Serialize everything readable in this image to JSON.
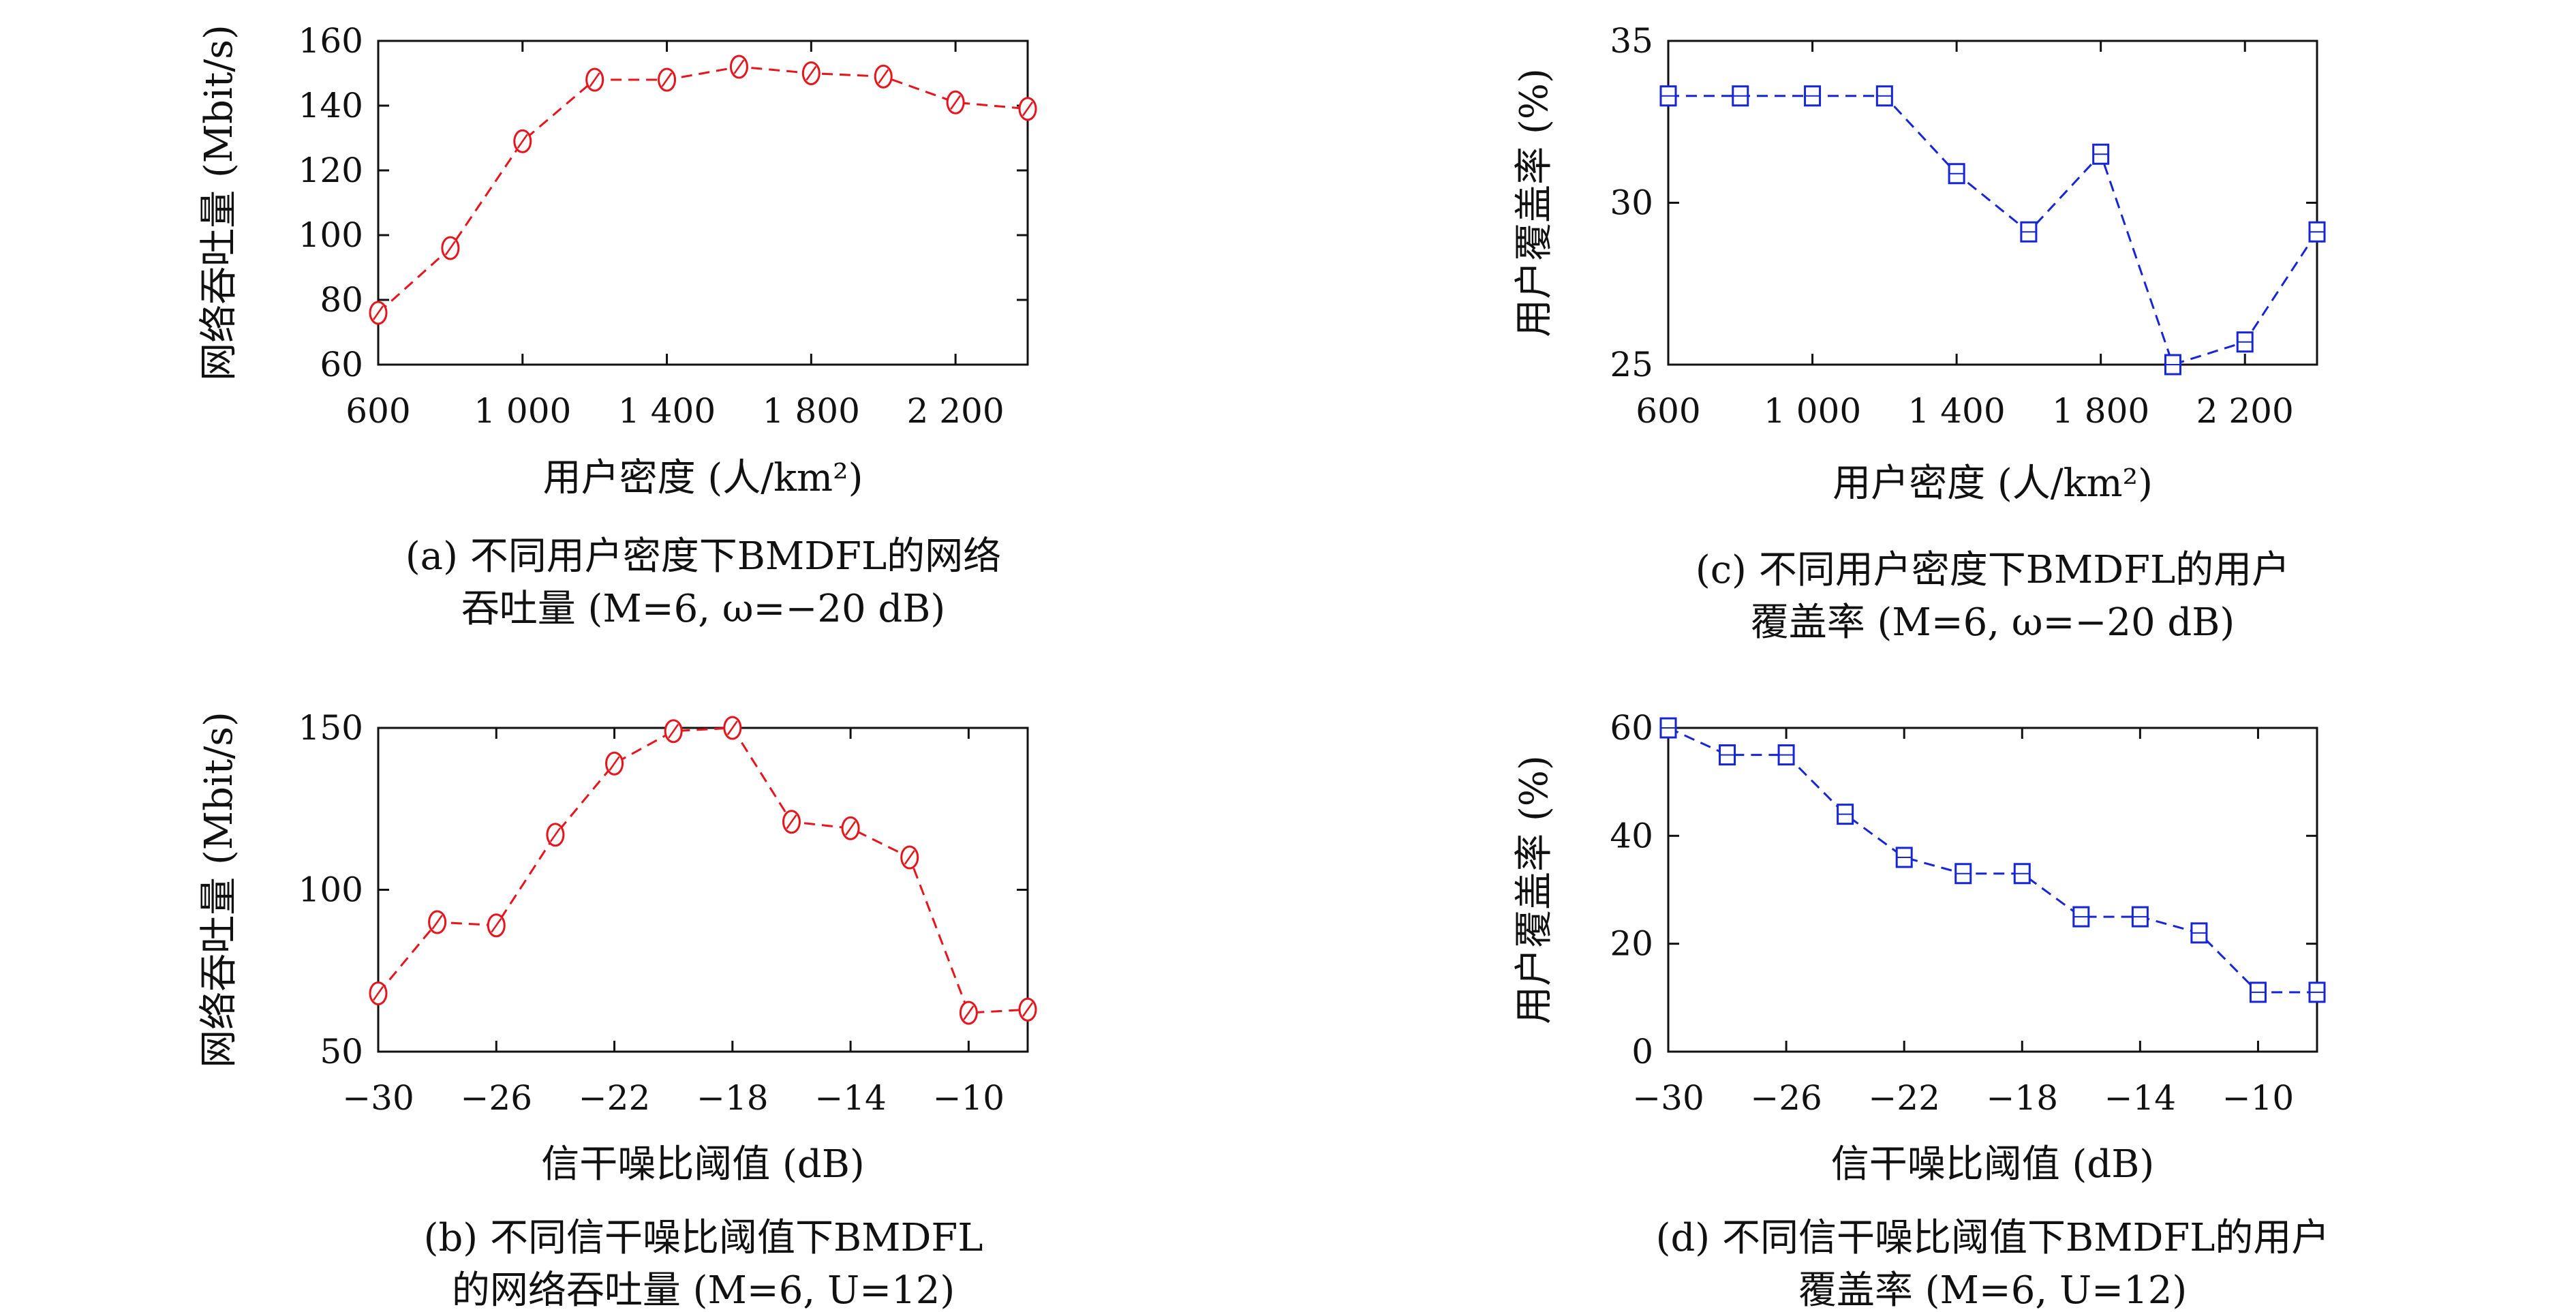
{
  "colors": {
    "red_series": "#e8141c",
    "blue_series": "#1626d6",
    "axis": "#111111"
  },
  "chart_data": [
    {
      "panel": "a",
      "type": "line",
      "marker": "circle",
      "color": "#e8141c",
      "line_style": "dashed",
      "x": [
        600,
        800,
        1000,
        1200,
        1400,
        1600,
        1800,
        2000,
        2200,
        2400
      ],
      "y": [
        76,
        96,
        129,
        148,
        148,
        152,
        150,
        149,
        141,
        139
      ],
      "xlim": [
        600,
        2400
      ],
      "ylim": [
        60,
        160
      ],
      "xticks": [
        600,
        1000,
        1400,
        1800,
        2200
      ],
      "xtick_labels": [
        "600",
        "1 000",
        "1 400",
        "1 800",
        "2 200"
      ],
      "yticks": [
        60,
        80,
        100,
        120,
        140,
        160
      ],
      "ytick_labels": [
        "60",
        "80",
        "100",
        "120",
        "140",
        "160"
      ],
      "xlabel": "用户密度 (人/km²)",
      "ylabel": "网络吞吐量 (Mbit/s)",
      "caption_line1": "(a) 不同用户密度下BMDFL的网络",
      "caption_line2": "吞吐量 (M=6, ω=−20 dB)"
    },
    {
      "panel": "b",
      "type": "line",
      "marker": "circle",
      "color": "#e8141c",
      "line_style": "dashed",
      "x": [
        -30,
        -28,
        -26,
        -24,
        -22,
        -20,
        -18,
        -16,
        -14,
        -12,
        -10,
        -8
      ],
      "y": [
        68,
        90,
        89,
        117,
        139,
        149,
        150,
        121,
        119,
        110,
        62,
        63
      ],
      "xlim": [
        -30,
        -8
      ],
      "ylim": [
        50,
        150
      ],
      "xticks": [
        -30,
        -26,
        -22,
        -18,
        -14,
        -10
      ],
      "xtick_labels": [
        "−30",
        "−26",
        "−22",
        "−18",
        "−14",
        "−10"
      ],
      "yticks": [
        50,
        100,
        150
      ],
      "ytick_labels": [
        "50",
        "100",
        "150"
      ],
      "xlabel": "信干噪比阈值 (dB)",
      "ylabel": "网络吞吐量 (Mbit/s)",
      "caption_line1": "(b) 不同信干噪比阈值下BMDFL",
      "caption_line2": "的网络吞吐量 (M=6, U=12)"
    },
    {
      "panel": "c",
      "type": "line",
      "marker": "square",
      "color": "#1626d6",
      "line_style": "dashed",
      "x": [
        600,
        800,
        1000,
        1200,
        1400,
        1600,
        1800,
        2000,
        2200,
        2400
      ],
      "y": [
        33.3,
        33.3,
        33.3,
        33.3,
        30.9,
        29.1,
        31.5,
        25.0,
        25.7,
        29.1
      ],
      "xlim": [
        600,
        2400
      ],
      "ylim": [
        25,
        35
      ],
      "xticks": [
        600,
        1000,
        1400,
        1800,
        2200
      ],
      "xtick_labels": [
        "600",
        "1 000",
        "1 400",
        "1 800",
        "2 200"
      ],
      "yticks": [
        25,
        30,
        35
      ],
      "ytick_labels": [
        "25",
        "30",
        "35"
      ],
      "xlabel": "用户密度 (人/km²)",
      "ylabel": "用户覆盖率 (%)",
      "caption_line1": "(c) 不同用户密度下BMDFL的用户",
      "caption_line2": "覆盖率 (M=6, ω=−20 dB)"
    },
    {
      "panel": "d",
      "type": "line",
      "marker": "square",
      "color": "#1626d6",
      "line_style": "dashed",
      "x": [
        -30,
        -28,
        -26,
        -24,
        -22,
        -20,
        -18,
        -16,
        -14,
        -12,
        -10,
        -8
      ],
      "y": [
        60,
        55,
        55,
        44,
        36,
        33,
        33,
        25,
        25,
        22,
        11,
        11
      ],
      "xlim": [
        -30,
        -8
      ],
      "ylim": [
        0,
        60
      ],
      "xticks": [
        -30,
        -26,
        -22,
        -18,
        -14,
        -10
      ],
      "xtick_labels": [
        "−30",
        "−26",
        "−22",
        "−18",
        "−14",
        "−10"
      ],
      "yticks": [
        0,
        20,
        40,
        60
      ],
      "ytick_labels": [
        "0",
        "20",
        "40",
        "60"
      ],
      "xlabel": "信干噪比阈值 (dB)",
      "ylabel": "用户覆盖率 (%)",
      "caption_line1": "(d) 不同信干噪比阈值下BMDFL的用户",
      "caption_line2": "覆盖率 (M=6, U=12)"
    }
  ]
}
